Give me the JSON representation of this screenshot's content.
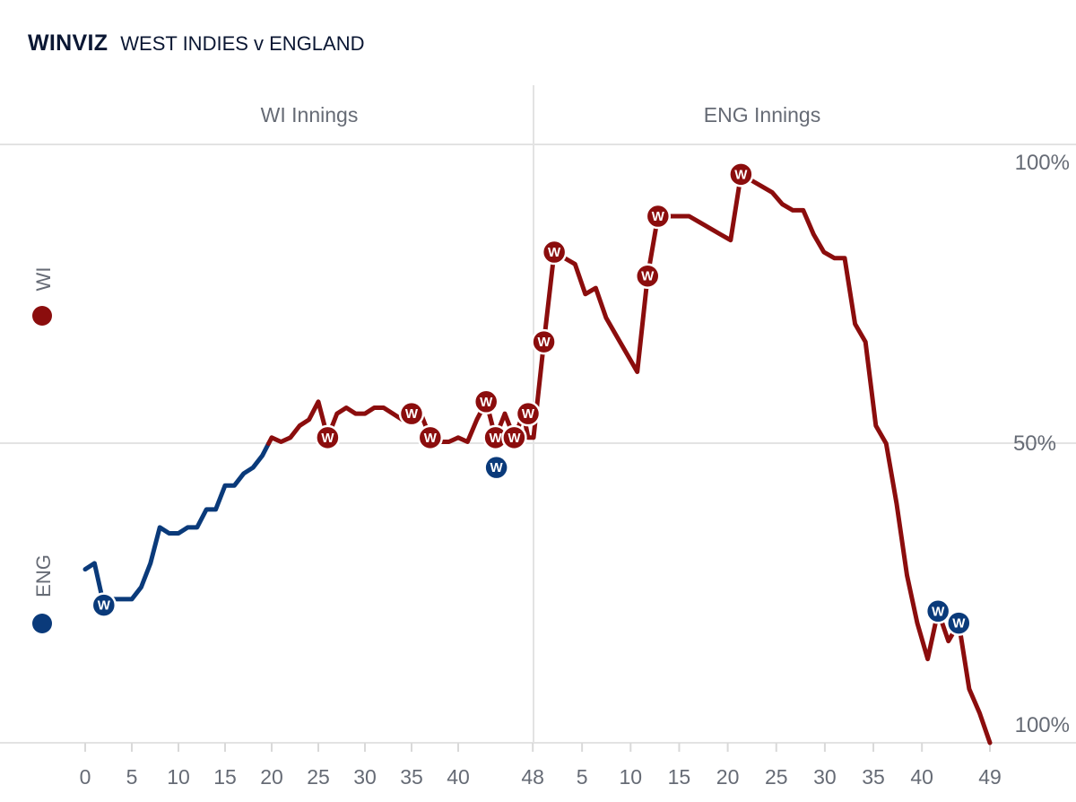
{
  "header": {
    "brand": "WINVIZ",
    "match": "WEST INDIES v ENGLAND"
  },
  "innings": [
    "WI Innings",
    "ENG Innings"
  ],
  "teams": {
    "top": {
      "name": "WI",
      "color": "#8b0d0d"
    },
    "bottom": {
      "name": "ENG",
      "color": "#0a3a7a"
    }
  },
  "wicket_marker": "W",
  "chart_data": {
    "type": "line",
    "title": "",
    "y_axis_labels": [
      "100%",
      "50%",
      "100%"
    ],
    "y_meaning": "win probability, 100 = WI certain win, 0 = ENG certain win",
    "ylim": [
      0,
      100
    ],
    "x_ticks": {
      "WI Innings": [
        "0",
        "5",
        "10",
        "15",
        "20",
        "25",
        "30",
        "35",
        "40",
        "48"
      ],
      "ENG Innings": [
        "5",
        "10",
        "15",
        "20",
        "25",
        "30",
        "35",
        "40",
        "49"
      ]
    },
    "grid": true,
    "series": [
      {
        "innings": "WI Innings",
        "points": [
          [
            0,
            29
          ],
          [
            1,
            30
          ],
          [
            2,
            23
          ],
          [
            3,
            24
          ],
          [
            4,
            24
          ],
          [
            5,
            24
          ],
          [
            6,
            26
          ],
          [
            7,
            30
          ],
          [
            8,
            36
          ],
          [
            9,
            35
          ],
          [
            10,
            35
          ],
          [
            11,
            36
          ],
          [
            12,
            36
          ],
          [
            13,
            39
          ],
          [
            14,
            39
          ],
          [
            15,
            43
          ],
          [
            16,
            43
          ],
          [
            17,
            45
          ],
          [
            18,
            46
          ],
          [
            19,
            48
          ],
          [
            20,
            51
          ],
          [
            21,
            50.3
          ],
          [
            22,
            51
          ],
          [
            23,
            53
          ],
          [
            24,
            54
          ],
          [
            25,
            57
          ],
          [
            26,
            51
          ],
          [
            27,
            55
          ],
          [
            28,
            56
          ],
          [
            29,
            55
          ],
          [
            30,
            55
          ],
          [
            31,
            56
          ],
          [
            32,
            56
          ],
          [
            33,
            55
          ],
          [
            34,
            54
          ],
          [
            35,
            55
          ],
          [
            36,
            55
          ],
          [
            37,
            51
          ],
          [
            38,
            50.3
          ],
          [
            39,
            50.3
          ],
          [
            40,
            51
          ],
          [
            41,
            50.3
          ],
          [
            42,
            54
          ],
          [
            43,
            57
          ],
          [
            44,
            51
          ],
          [
            45,
            55
          ],
          [
            46,
            51
          ],
          [
            47,
            55
          ],
          [
            47.5,
            51
          ],
          [
            48,
            51
          ]
        ],
        "wickets": [
          2,
          26,
          35,
          37,
          43,
          44,
          44.1,
          46,
          47.5
        ]
      },
      {
        "innings": "ENG Innings",
        "points": [
          [
            0,
            51
          ],
          [
            1,
            67
          ],
          [
            2,
            82
          ],
          [
            3,
            81
          ],
          [
            4,
            80
          ],
          [
            5,
            75
          ],
          [
            6,
            76
          ],
          [
            7,
            71
          ],
          [
            8,
            68
          ],
          [
            9,
            65
          ],
          [
            10,
            62
          ],
          [
            11,
            78
          ],
          [
            12,
            88
          ],
          [
            13,
            88
          ],
          [
            14,
            88
          ],
          [
            15,
            88
          ],
          [
            16,
            87
          ],
          [
            17,
            86
          ],
          [
            18,
            85
          ],
          [
            19,
            84
          ],
          [
            20,
            95
          ],
          [
            21,
            94
          ],
          [
            22,
            93
          ],
          [
            23,
            92
          ],
          [
            24,
            90
          ],
          [
            25,
            89
          ],
          [
            26,
            89
          ],
          [
            27,
            85
          ],
          [
            28,
            82
          ],
          [
            29,
            81
          ],
          [
            30,
            81
          ],
          [
            31,
            70
          ],
          [
            32,
            67
          ],
          [
            33,
            53
          ],
          [
            34,
            50
          ],
          [
            35,
            40
          ],
          [
            36,
            28
          ],
          [
            37,
            20
          ],
          [
            38,
            14
          ],
          [
            39,
            22
          ],
          [
            40,
            17
          ],
          [
            41,
            20
          ],
          [
            42,
            9
          ],
          [
            43,
            5
          ],
          [
            44,
            0
          ]
        ],
        "wickets": [
          1,
          2,
          11,
          12,
          20,
          39,
          41
        ]
      }
    ]
  }
}
